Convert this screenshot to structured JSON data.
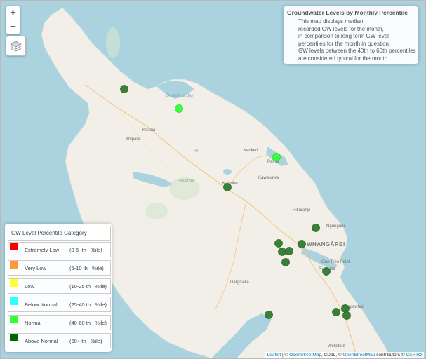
{
  "zoom": {
    "in_label": "+",
    "out_label": "−"
  },
  "layers_icon": "layers-icon",
  "info": {
    "title": "Groundwater Levels by Monthly Percentile",
    "lines": [
      "This map displays median",
      "recorded GW levels for the month,",
      "in comparison to long term GW level",
      "percentiles for the month in question.",
      "GW levels between the 40th to 60th percentiles",
      "are considered typical for the month."
    ]
  },
  "legend": {
    "title": "GW Level Percentile Category",
    "items": [
      {
        "label": "Extremely Low",
        "range": "(0-5  th   %ile)",
        "color": "#ff0000"
      },
      {
        "label": "Very Low",
        "range": "(5-10 th   %ile)",
        "color": "#ff9933"
      },
      {
        "label": "Low",
        "range": "(10-25 th   %ile)",
        "color": "#ffff33"
      },
      {
        "label": "Below Normal",
        "range": "(25-40 th   %ile)",
        "color": "#33ffff"
      },
      {
        "label": "Normal",
        "range": "(40-60 th   %ile)",
        "color": "#33ff33"
      },
      {
        "label": "Above Normal",
        "range": "(60+ th   %ile)",
        "color": "#006600"
      }
    ]
  },
  "places": {
    "doubtless_bay": "Doubtless Bay",
    "kaitaia": "Kaitaia",
    "ahipara": "Ahipara",
    "kerikeri": "Kerikeri",
    "paihia": "Paihia",
    "kawakawa": "Kawakawa",
    "kaikohe": "Kaikohe",
    "hokianga": "Hokianga",
    "hikurangi": "Hikurangi",
    "ngunguru": "Ngunguru",
    "whangarei": "WHANGĀREI",
    "one_tree_point": "One Tree Point",
    "ruakaka": "Ruakaka",
    "dargaville": "Dargaville",
    "mangawhai": "Mangawhai",
    "wellsford": "Wellsford"
  },
  "attribution": {
    "leaflet": "Leaflet",
    "sep1": " | © ",
    "osm": "OpenStreetMap",
    "sep2": ", CDbL, © ",
    "osm2": "OpenStreetMap",
    "contrib": " contributors © ",
    "carto": "CARTO"
  },
  "colors": {
    "water": "#aad3df",
    "land": "#f2efe9",
    "normal": "#33ff33",
    "above_normal": "#2d7a2d"
  },
  "sites": [
    {
      "name": "Aupouri site",
      "category": "Above Normal"
    },
    {
      "name": "Doubtless Bay site",
      "category": "Normal"
    },
    {
      "name": "Paihia site",
      "category": "Normal"
    },
    {
      "name": "Kaikohe site",
      "category": "Above Normal"
    },
    {
      "name": "Hikurangi site",
      "category": "Above Normal"
    },
    {
      "name": "Whangarei site 1",
      "category": "Above Normal"
    },
    {
      "name": "Whangarei site 2",
      "category": "Above Normal"
    },
    {
      "name": "Whangarei site 3",
      "category": "Above Normal"
    },
    {
      "name": "Whangarei site 4",
      "category": "Above Normal"
    },
    {
      "name": "Whangarei site 5",
      "category": "Above Normal"
    },
    {
      "name": "Ruakaka site",
      "category": "Above Normal"
    },
    {
      "name": "Kaipara site",
      "category": "Above Normal"
    },
    {
      "name": "Mangawhai site 1",
      "category": "Above Normal"
    },
    {
      "name": "Mangawhai site 2",
      "category": "Above Normal"
    },
    {
      "name": "Mangawhai site 3",
      "category": "Above Normal"
    }
  ]
}
